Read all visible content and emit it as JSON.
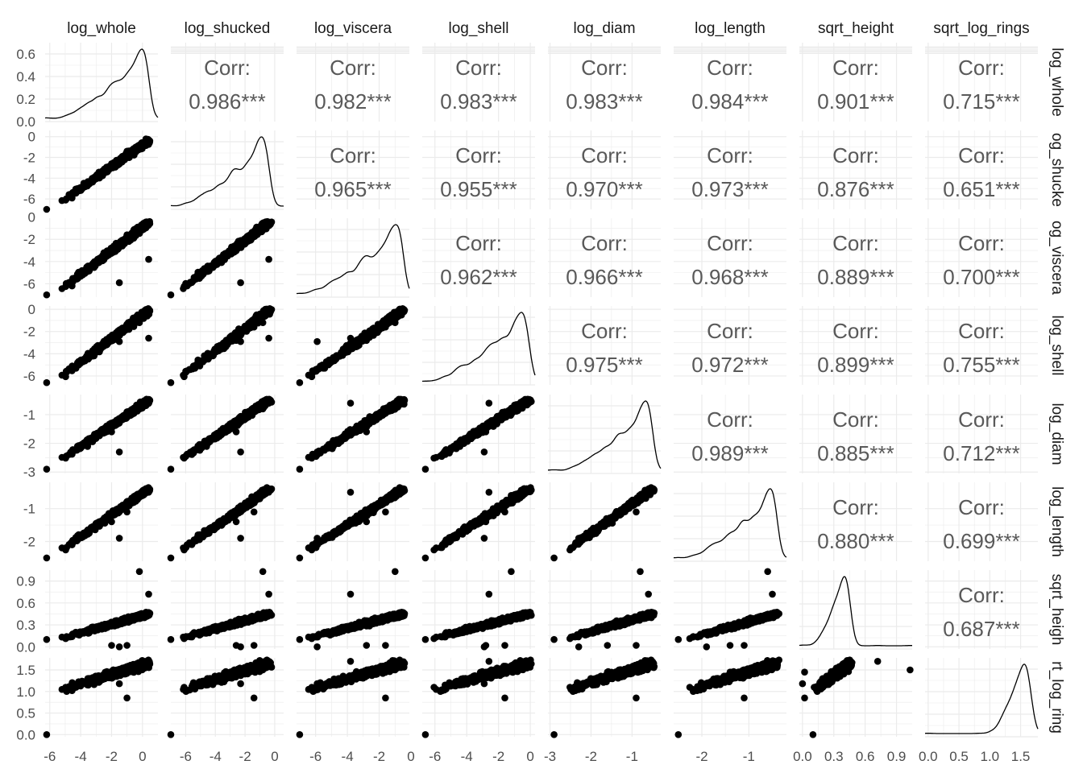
{
  "chart_data": {
    "type": "scatter-matrix",
    "variables": [
      "log_whole",
      "log_shucked",
      "log_viscera",
      "log_shell",
      "log_diam",
      "log_length",
      "sqrt_height",
      "sqrt_log_rings"
    ],
    "row_strip_labels": [
      "log_whole",
      "og_shucke",
      "og_viscera",
      "log_shell",
      "log_diam",
      "log_length",
      "sqrt_heigh",
      "rt_log_ring"
    ],
    "corr_prefix": "Corr:",
    "correlations": {
      "0_1": "0.986***",
      "0_2": "0.982***",
      "0_3": "0.983***",
      "0_4": "0.983***",
      "0_5": "0.984***",
      "0_6": "0.901***",
      "0_7": "0.715***",
      "1_2": "0.965***",
      "1_3": "0.955***",
      "1_4": "0.970***",
      "1_5": "0.973***",
      "1_6": "0.876***",
      "1_7": "0.651***",
      "2_3": "0.962***",
      "2_4": "0.966***",
      "2_5": "0.968***",
      "2_6": "0.889***",
      "2_7": "0.700***",
      "3_4": "0.975***",
      "3_5": "0.972***",
      "3_6": "0.899***",
      "3_7": "0.755***",
      "4_5": "0.989***",
      "4_6": "0.885***",
      "4_7": "0.712***",
      "5_6": "0.880***",
      "5_7": "0.699***",
      "6_7": "0.687***"
    },
    "y_axis_ticks": [
      [
        "0.0",
        "0.2",
        "0.4",
        "0.6"
      ],
      [
        "0",
        "-2",
        "-4",
        "-6"
      ],
      [
        "0",
        "-2",
        "-4",
        "-6"
      ],
      [
        "0",
        "-2",
        "-4",
        "-6"
      ],
      [
        "-1",
        "-2",
        "-3"
      ],
      [
        "-1",
        "-2"
      ],
      [
        "0.9",
        "0.6",
        "0.3",
        "0.0"
      ],
      [
        "1.5",
        "1.0",
        "0.5",
        "0.0"
      ]
    ],
    "x_axis_ticks": [
      [
        "-6",
        "-4",
        "-2",
        "0"
      ],
      [
        "-6",
        "-4",
        "-2",
        "0"
      ],
      [
        "-6",
        "-4",
        "-2",
        "0"
      ],
      [
        "-6",
        "-4",
        "-2",
        "0"
      ],
      [
        "-3",
        "-2",
        "-1"
      ],
      [
        "-2",
        "-1"
      ],
      [
        "0.0",
        "0.3",
        "0.6",
        "0.9"
      ],
      [
        "0.0",
        "0.5",
        "1.0",
        "1.5"
      ]
    ],
    "ranges": [
      [
        -6.3,
        1.0
      ],
      [
        -7.0,
        0.6
      ],
      [
        -7.2,
        -0.1
      ],
      [
        -6.8,
        0.3
      ],
      [
        -3.05,
        -0.3
      ],
      [
        -2.6,
        -0.2
      ],
      [
        -0.03,
        1.05
      ],
      [
        -0.05,
        1.78
      ]
    ],
    "diag_ylim": [
      0.0,
      0.7
    ],
    "grid": true,
    "point_color": "#000000",
    "density_color": "#000000",
    "corr_text_color": "#595959",
    "grid_color": "#ebebeb"
  }
}
